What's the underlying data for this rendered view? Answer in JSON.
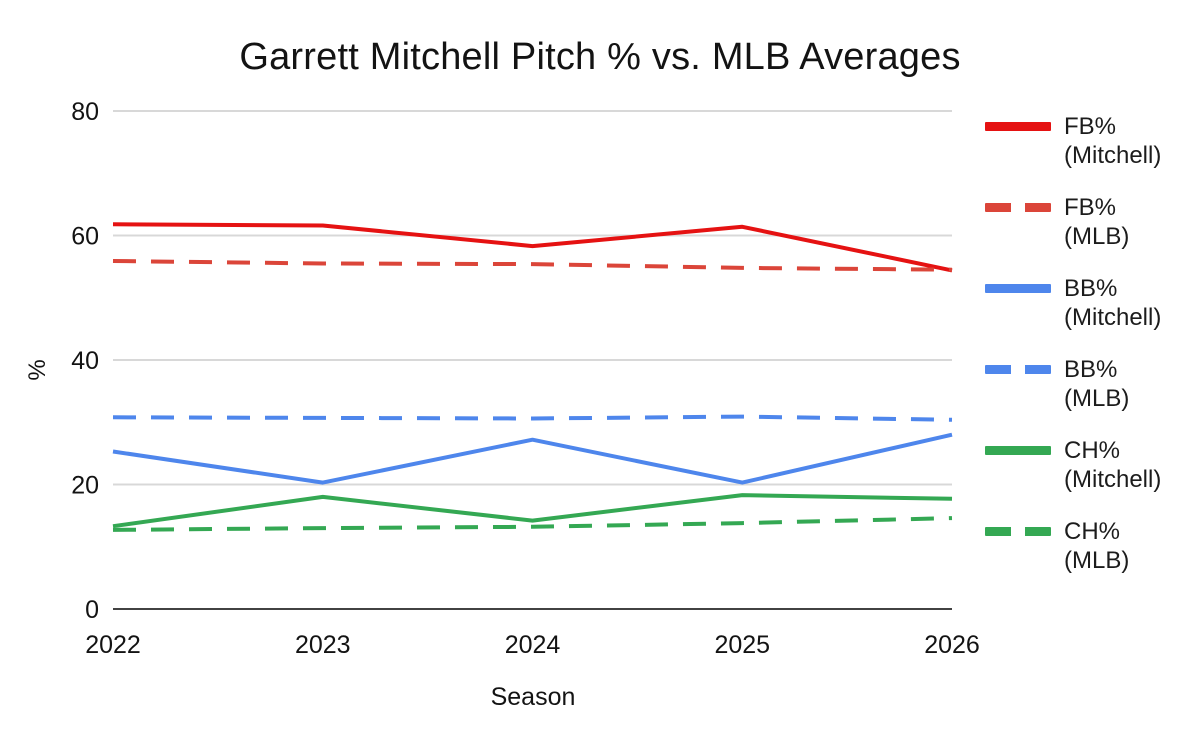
{
  "title": "Garrett Mitchell Pitch % vs. MLB Averages",
  "chart_data": {
    "type": "line",
    "title": "Garrett Mitchell Pitch % vs. MLB Averages",
    "xlabel": "Season",
    "ylabel": "%",
    "x": [
      2022,
      2023,
      2024,
      2025,
      2026
    ],
    "ylim": [
      0,
      80
    ],
    "yticks": [
      0,
      20,
      40,
      60,
      80
    ],
    "grid": true,
    "legend_position": "right",
    "colors": {
      "fb_mitchell": "#e51212",
      "fb_mlb": "#db4539",
      "bb": "#4e86ec",
      "ch": "#34a853",
      "gridline": "#d8d8d8",
      "axis_line": "#424242"
    },
    "series": [
      {
        "name": "FB% (Mitchell)",
        "label_lines": [
          "FB%",
          "(Mitchell)"
        ],
        "color": "#e51212",
        "style": "solid",
        "values": [
          61.8,
          61.6,
          58.3,
          61.4,
          54.4
        ]
      },
      {
        "name": "FB% (MLB)",
        "label_lines": [
          "FB%",
          "(MLB)"
        ],
        "color": "#db4539",
        "style": "dashed",
        "values": [
          55.9,
          55.5,
          55.4,
          54.8,
          54.5
        ]
      },
      {
        "name": "BB% (Mitchell)",
        "label_lines": [
          "BB%",
          "(Mitchell)"
        ],
        "color": "#4e86ec",
        "style": "solid",
        "values": [
          25.3,
          20.3,
          27.2,
          20.3,
          28.0
        ]
      },
      {
        "name": "BB% (MLB)",
        "label_lines": [
          "BB%",
          "(MLB)"
        ],
        "color": "#4e86ec",
        "style": "dashed",
        "values": [
          30.8,
          30.7,
          30.6,
          30.9,
          30.4
        ]
      },
      {
        "name": "CH% (Mitchell)",
        "label_lines": [
          "CH%",
          "(Mitchell)"
        ],
        "color": "#34a853",
        "style": "solid",
        "values": [
          13.3,
          18.0,
          14.2,
          18.3,
          17.7
        ]
      },
      {
        "name": "CH% (MLB)",
        "label_lines": [
          "CH%",
          "(MLB)"
        ],
        "color": "#34a853",
        "style": "dashed",
        "values": [
          12.7,
          13.0,
          13.2,
          13.8,
          14.6
        ]
      }
    ]
  }
}
